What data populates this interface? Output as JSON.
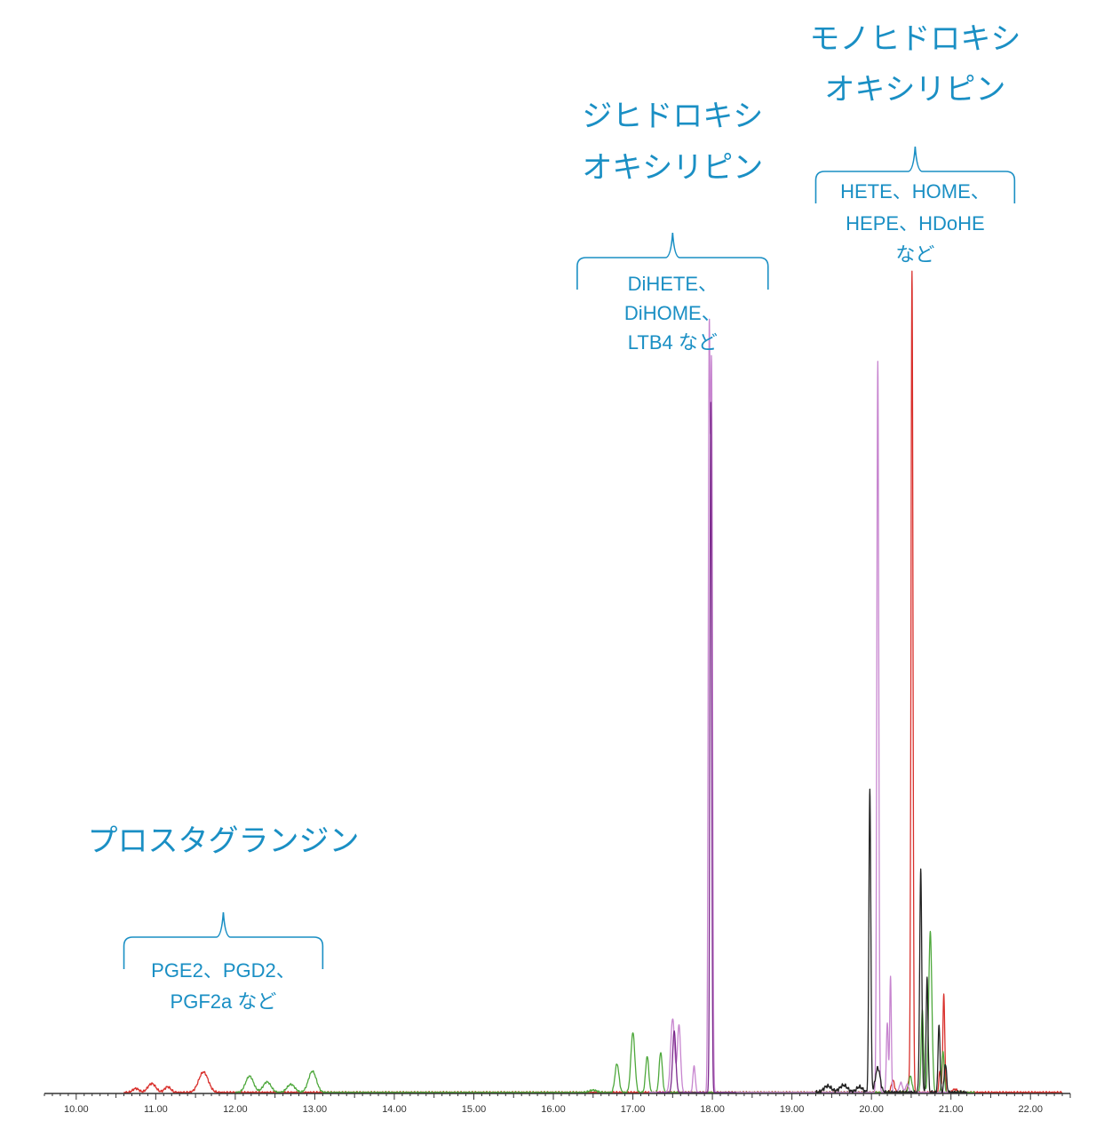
{
  "chart_data": {
    "type": "line",
    "title": "",
    "xlabel": "",
    "ylabel": "",
    "xlim": [
      9.6,
      22.5
    ],
    "ylim": [
      0,
      100
    ],
    "grid": false,
    "x_ticks": [
      "10.00",
      "11.00",
      "12.00",
      "13.00",
      "14.00",
      "15.00",
      "16.00",
      "17.00",
      "18.00",
      "19.00",
      "20.00",
      "21.00",
      "22.00"
    ],
    "groups": [
      {
        "title_lines": [
          "プロスタグランジン"
        ],
        "member_lines": [
          "PGE2、PGD2、",
          "PGF2a など"
        ],
        "x_range": [
          10.6,
          13.1
        ]
      },
      {
        "title_lines": [
          "ジヒドロキシ",
          "オキシリピン"
        ],
        "member_lines": [
          "DiHETE、",
          "DiHOME、",
          "LTB4 など"
        ],
        "x_range": [
          16.3,
          18.7
        ]
      },
      {
        "title_lines": [
          "モノヒドロキシ",
          "オキシリピン"
        ],
        "member_lines": [
          "HETE、HOME、",
          "HEPE、HDoHE",
          "など"
        ],
        "x_range": [
          19.3,
          21.8
        ]
      }
    ],
    "series": [
      {
        "color": "#d9302c",
        "baseline_range": [
          10.6,
          22.4
        ],
        "noise": 0.15,
        "peaks": [
          [
            10.75,
            0.5,
            0.04
          ],
          [
            10.95,
            1.1,
            0.05
          ],
          [
            11.15,
            0.7,
            0.04
          ],
          [
            11.6,
            2.5,
            0.06
          ],
          [
            20.27,
            1.5,
            0.02
          ],
          [
            20.47,
            1.2,
            0.015
          ],
          [
            20.51,
            100,
            0.012
          ],
          [
            20.86,
            2.6,
            0.012
          ],
          [
            20.91,
            12,
            0.012
          ],
          [
            21.05,
            0.4,
            0.03
          ]
        ]
      },
      {
        "color": "#4ea83c",
        "baseline_range": [
          12.0,
          21.3
        ],
        "noise": 0.12,
        "peaks": [
          [
            12.18,
            2.0,
            0.05
          ],
          [
            12.4,
            1.3,
            0.05
          ],
          [
            12.7,
            1.0,
            0.05
          ],
          [
            12.97,
            2.6,
            0.05
          ],
          [
            16.5,
            0.3,
            0.05
          ],
          [
            16.8,
            3.5,
            0.025
          ],
          [
            17.0,
            7.3,
            0.025
          ],
          [
            17.18,
            4.4,
            0.02
          ],
          [
            17.35,
            4.9,
            0.02
          ],
          [
            20.49,
            2.0,
            0.02
          ],
          [
            20.64,
            10.0,
            0.015
          ],
          [
            20.74,
            19.5,
            0.02
          ],
          [
            20.9,
            5.0,
            0.015
          ]
        ]
      },
      {
        "color": "#c785cf",
        "baseline_range": [
          17.2,
          21.0
        ],
        "noise": 0.1,
        "peaks": [
          [
            17.5,
            9.0,
            0.025
          ],
          [
            17.58,
            8.2,
            0.02
          ],
          [
            17.77,
            3.2,
            0.015
          ],
          [
            17.96,
            90,
            0.012
          ],
          [
            17.99,
            85,
            0.012
          ],
          [
            20.08,
            89,
            0.012
          ],
          [
            20.2,
            8.5,
            0.012
          ],
          [
            20.24,
            14.2,
            0.01
          ],
          [
            20.37,
            1.2,
            0.02
          ],
          [
            20.45,
            1.0,
            0.02
          ]
        ]
      },
      {
        "color": "#7b2a8c",
        "baseline_range": [
          17.3,
          18.3
        ],
        "noise": 0.0,
        "peaks": [
          [
            17.52,
            7.5,
            0.02
          ],
          [
            17.98,
            84,
            0.011
          ]
        ]
      },
      {
        "color": "#222222",
        "baseline_range": [
          19.3,
          21.2
        ],
        "noise": 0.25,
        "peaks": [
          [
            19.45,
            0.8,
            0.05
          ],
          [
            19.65,
            0.9,
            0.05
          ],
          [
            19.85,
            0.7,
            0.04
          ],
          [
            19.98,
            37,
            0.012
          ],
          [
            20.08,
            3.0,
            0.03
          ],
          [
            20.62,
            27,
            0.013
          ],
          [
            20.7,
            14,
            0.012
          ],
          [
            20.85,
            8.4,
            0.012
          ],
          [
            20.93,
            3.5,
            0.015
          ]
        ]
      }
    ]
  }
}
